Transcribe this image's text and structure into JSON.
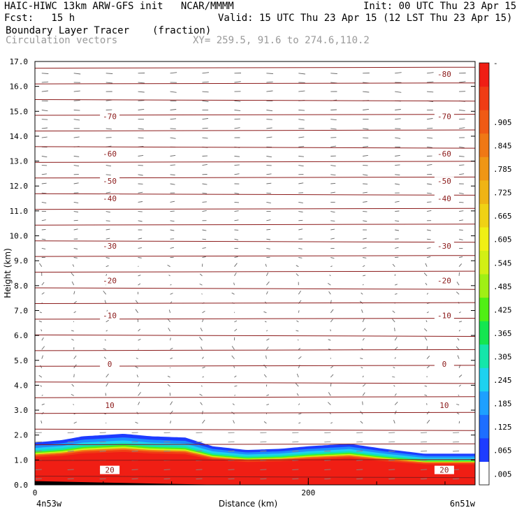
{
  "header": {
    "line1_left": "HAIC-HIWC 13km ARW-GFS init   NCAR/MMMM",
    "line1_right": "Init: 00 UTC Thu 23 Apr 15",
    "line2_left": "Fcst:   15 h",
    "line2_right": "Valid: 15 UTC Thu 23 Apr 15 (12 LST Thu 23 Apr 15)",
    "line3_field": "Boundary Layer Tracer",
    "line3_units": "(fraction)",
    "line4_field": "Circulation vectors",
    "line4_xy": "XY= 259.5, 91.6 to 274.6,110.2"
  },
  "chart_data": {
    "type": "heatmap",
    "title": "Boundary Layer Tracer (fraction)",
    "overlay": "Circulation vectors",
    "xlabel": "Distance (km)",
    "ylabel": "Height (km)",
    "xlim": [
      0,
      322
    ],
    "ylim": [
      0,
      17
    ],
    "x_ticks": [
      0,
      200
    ],
    "y_ticks": [
      0.0,
      1.0,
      2.0,
      3.0,
      4.0,
      5.0,
      6.0,
      7.0,
      8.0,
      9.0,
      10.0,
      11.0,
      12.0,
      13.0,
      14.0,
      15.0,
      16.0,
      17.0
    ],
    "x_end_labels": [
      "4n53w",
      "6n51w"
    ],
    "colorbar_labels": [
      ".005",
      ".065",
      ".125",
      ".185",
      ".245",
      ".305",
      ".365",
      ".425",
      ".485",
      ".545",
      ".605",
      ".665",
      ".725",
      ".785",
      ".845",
      ".905"
    ],
    "colorbar_colors": [
      "#ffffff",
      "#1e3cff",
      "#1e6eff",
      "#1ea0ff",
      "#1ed2f0",
      "#14e6aa",
      "#14e650",
      "#50f014",
      "#a0f014",
      "#d2f014",
      "#f0f014",
      "#f0d214",
      "#f0b414",
      "#f09614",
      "#f07814",
      "#f05a14",
      "#f03c14",
      "#f01e14"
    ],
    "bl_top_km": [
      {
        "x": 0,
        "z": 1.7
      },
      {
        "x": 20,
        "z": 1.8
      },
      {
        "x": 35,
        "z": 1.95
      },
      {
        "x": 65,
        "z": 2.05
      },
      {
        "x": 85,
        "z": 1.95
      },
      {
        "x": 110,
        "z": 1.9
      },
      {
        "x": 130,
        "z": 1.55
      },
      {
        "x": 155,
        "z": 1.4
      },
      {
        "x": 180,
        "z": 1.45
      },
      {
        "x": 200,
        "z": 1.55
      },
      {
        "x": 230,
        "z": 1.65
      },
      {
        "x": 255,
        "z": 1.45
      },
      {
        "x": 285,
        "z": 1.25
      },
      {
        "x": 322,
        "z": 1.25
      }
    ],
    "contour_color": "#8b1a1a",
    "isotherms": [
      {
        "z": 0.6,
        "label": "20"
      },
      {
        "z": 3.2,
        "label": "10"
      },
      {
        "z": 4.85,
        "label": "0"
      },
      {
        "z": 6.8,
        "label": "-10"
      },
      {
        "z": 8.2,
        "label": "-20"
      },
      {
        "z": 9.6,
        "label": "-30"
      },
      {
        "z": 11.5,
        "label": "-40"
      },
      {
        "z": 12.2,
        "label": "-50"
      },
      {
        "z": 13.3,
        "label": "-60"
      },
      {
        "z": 14.8,
        "label": "-70"
      },
      {
        "z": 16.5,
        "label": "-80"
      }
    ]
  }
}
